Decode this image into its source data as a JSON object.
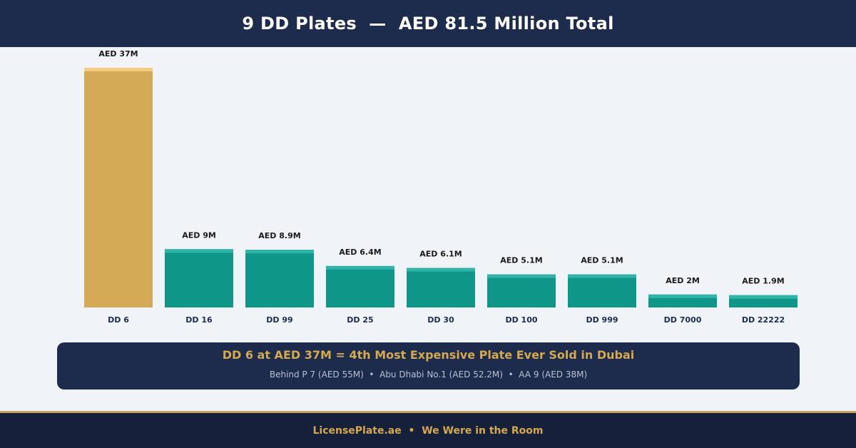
{
  "header": {
    "title": "9 DD Plates  —  AED 81.5 Million Total"
  },
  "chart_data": {
    "type": "bar",
    "title": "9 DD Plates  —  AED 81.5 Million Total",
    "categories": [
      "DD 6",
      "DD 16",
      "DD 99",
      "DD 25",
      "DD 30",
      "DD 100",
      "DD 999",
      "DD 7000",
      "DD 22222"
    ],
    "values": [
      37,
      9,
      8.9,
      6.4,
      6.1,
      5.1,
      5.1,
      2,
      1.9
    ],
    "value_labels": [
      "AED 37M",
      "AED 9M",
      "AED 8.9M",
      "AED 6.4M",
      "AED 6.1M",
      "AED 5.1M",
      "AED 5.1M",
      "AED 2M",
      "AED 1.9M"
    ],
    "unit": "AED million",
    "ylim": [
      0,
      37
    ],
    "xlabel": "",
    "ylabel": "",
    "grid": false,
    "highlight_index": 0,
    "colors": {
      "highlight": "#d4aa57",
      "highlight_cap": "#f5cc80",
      "bar": "#0e9688",
      "bar_cap": "#31b4a8",
      "label": "#1a1a1a",
      "tick": "#1d2b4c"
    }
  },
  "callout": {
    "headline": "DD 6 at AED 37M = 4th Most Expensive Plate Ever Sold in Dubai",
    "subtext": "Behind P 7 (AED 55M)  •  Abu Dhabi No.1 (AED 52.2M)  •  AA 9 (AED 38M)"
  },
  "footer": {
    "text": "LicensePlate.ae  •  We Were in the Room"
  }
}
